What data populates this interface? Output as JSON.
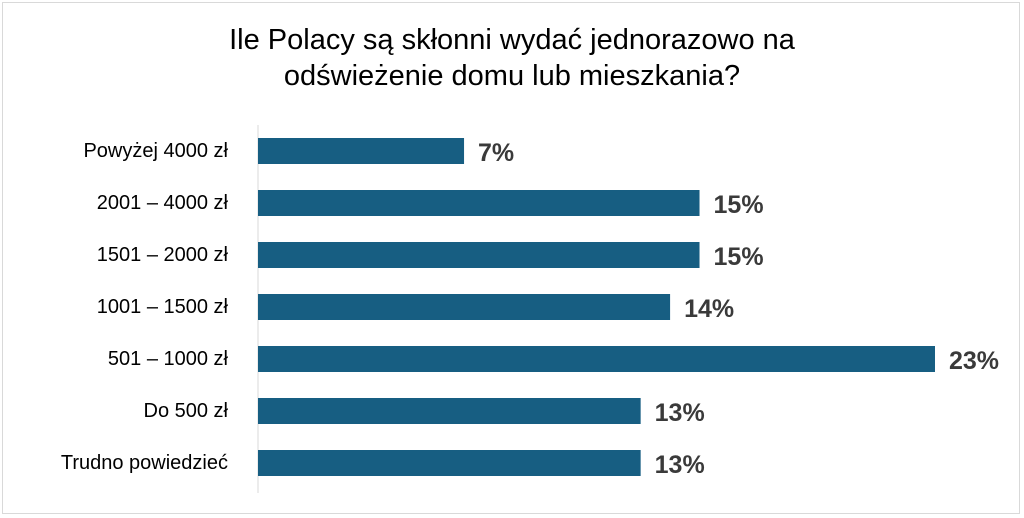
{
  "chart_data": {
    "type": "bar",
    "orientation": "horizontal",
    "title_lines": [
      "Ile Polacy są skłonni wydać jednorazowo na",
      "odświeżenie domu lub mieszkania?"
    ],
    "categories": [
      "Powyżej 4000 zł",
      "2001 – 4000 zł",
      "1501 – 2000 zł",
      "1001 – 1500 zł",
      "501 – 1000 zł",
      "Do 500 zł",
      "Trudno powiedzieć"
    ],
    "values": [
      7,
      15,
      15,
      14,
      23,
      13,
      13
    ],
    "value_labels": [
      "7%",
      "15%",
      "15%",
      "14%",
      "23%",
      "13%",
      "13%"
    ],
    "unit": "%",
    "xlim": [
      0,
      23
    ],
    "grid": false,
    "legend": "none",
    "bar_color": "#175e82",
    "label_color": "#3a3a3a"
  }
}
